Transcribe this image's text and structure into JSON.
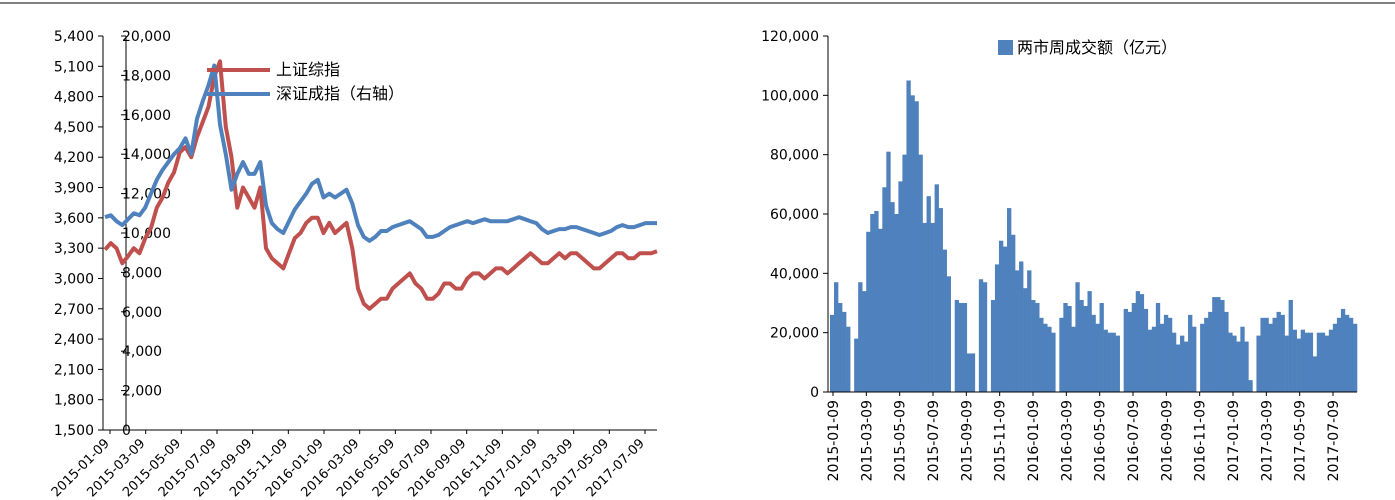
{
  "chart_data": [
    {
      "type": "line",
      "left_axis": {
        "min": 1500,
        "max": 5400,
        "step": 300,
        "ticks": [
          "1,500",
          "1,800",
          "2,100",
          "2,400",
          "2,700",
          "3,000",
          "3,300",
          "3,600",
          "3,900",
          "4,200",
          "4,500",
          "4,800",
          "5,100",
          "5,400"
        ]
      },
      "right_axis": {
        "min": 0,
        "max": 20000,
        "step": 2000,
        "ticks": [
          "0",
          "2,000",
          "4,000",
          "6,000",
          "8,000",
          "10,000",
          "12,000",
          "14,000",
          "16,000",
          "18,000",
          "20,000"
        ]
      },
      "x_labels": [
        "2015-01-09",
        "2015-03-09",
        "2015-05-09",
        "2015-07-09",
        "2015-09-09",
        "2015-11-09",
        "2016-01-09",
        "2016-03-09",
        "2016-05-09",
        "2016-07-09",
        "2016-09-09",
        "2016-11-09",
        "2017-01-09",
        "2017-03-09",
        "2017-05-09",
        "2017-07-09"
      ],
      "legend_position": "top-center",
      "series": [
        {
          "name": "上证综指",
          "axis": "left",
          "color": "#c0504d",
          "values": [
            3285,
            3350,
            3300,
            3150,
            3220,
            3300,
            3250,
            3400,
            3500,
            3700,
            3800,
            3950,
            4050,
            4250,
            4300,
            4200,
            4400,
            4550,
            4700,
            5000,
            5150,
            4500,
            4200,
            3700,
            3900,
            3800,
            3700,
            3900,
            3300,
            3200,
            3150,
            3100,
            3250,
            3400,
            3450,
            3550,
            3600,
            3600,
            3450,
            3550,
            3450,
            3500,
            3550,
            3300,
            2900,
            2750,
            2700,
            2750,
            2800,
            2800,
            2900,
            2950,
            3000,
            3050,
            2950,
            2900,
            2800,
            2800,
            2850,
            2950,
            2950,
            2900,
            2900,
            3000,
            3050,
            3050,
            3000,
            3050,
            3100,
            3100,
            3050,
            3100,
            3150,
            3200,
            3250,
            3200,
            3150,
            3150,
            3200,
            3250,
            3200,
            3250,
            3250,
            3200,
            3150,
            3100,
            3100,
            3150,
            3200,
            3250,
            3250,
            3200,
            3200,
            3250,
            3250,
            3250,
            3270
          ]
        },
        {
          "name": "深证成指（右轴）",
          "axis": "right",
          "color": "#4f81bd",
          "values": [
            10800,
            10900,
            10600,
            10400,
            10700,
            11000,
            10900,
            11300,
            12000,
            12700,
            13200,
            13600,
            14000,
            14300,
            14800,
            14000,
            15800,
            16700,
            17500,
            18500,
            15500,
            14000,
            12200,
            13000,
            13600,
            13000,
            13000,
            13600,
            11400,
            10500,
            10200,
            10000,
            10600,
            11200,
            11600,
            12000,
            12500,
            12700,
            11800,
            12000,
            11800,
            12000,
            12200,
            11500,
            10400,
            9800,
            9600,
            9800,
            10100,
            10100,
            10300,
            10400,
            10500,
            10600,
            10400,
            10200,
            9800,
            9800,
            9900,
            10100,
            10300,
            10400,
            10500,
            10600,
            10500,
            10600,
            10700,
            10600,
            10600,
            10600,
            10600,
            10700,
            10800,
            10700,
            10600,
            10500,
            10200,
            10000,
            10100,
            10200,
            10200,
            10300,
            10300,
            10200,
            10100,
            10000,
            9900,
            10000,
            10100,
            10300,
            10400,
            10300,
            10300,
            10400,
            10500,
            10500,
            10500
          ]
        }
      ]
    },
    {
      "type": "bar",
      "y_axis": {
        "min": 0,
        "max": 120000,
        "step": 20000,
        "ticks": [
          "0",
          "20,000",
          "40,000",
          "60,000",
          "80,000",
          "100,000",
          "120,000"
        ]
      },
      "x_labels": [
        "2015-01-09",
        "2015-03-09",
        "2015-05-09",
        "2015-07-09",
        "2015-09-09",
        "2015-11-09",
        "2016-01-09",
        "2016-03-09",
        "2016-05-09",
        "2016-07-09",
        "2016-09-09",
        "2016-11-09",
        "2017-01-09",
        "2017-03-09",
        "2017-05-09",
        "2017-07-09"
      ],
      "legend_position": "top-center",
      "series": [
        {
          "name": "两市周成交额（亿元）",
          "color": "#4f81bd",
          "values": [
            26000,
            37000,
            30000,
            27000,
            22000,
            0,
            18000,
            37000,
            34000,
            54000,
            60000,
            61000,
            55000,
            69000,
            81000,
            64000,
            60000,
            71000,
            80000,
            105000,
            100000,
            98000,
            80000,
            57000,
            66000,
            57000,
            70000,
            62000,
            48000,
            39000,
            0,
            31000,
            30000,
            30000,
            13000,
            13000,
            0,
            38000,
            37000,
            0,
            31000,
            43000,
            51000,
            49000,
            62000,
            53000,
            41000,
            44000,
            35000,
            41000,
            31000,
            30000,
            25000,
            23000,
            22000,
            20000,
            0,
            25000,
            30000,
            29000,
            22000,
            37000,
            31000,
            29000,
            34000,
            26000,
            23000,
            30000,
            21000,
            20000,
            20000,
            19000,
            0,
            28000,
            27000,
            30000,
            34000,
            33000,
            28000,
            21000,
            22000,
            30000,
            23000,
            26000,
            25000,
            20000,
            16000,
            19000,
            17000,
            26000,
            22000,
            0,
            23000,
            25000,
            27000,
            32000,
            32000,
            31000,
            27000,
            20000,
            19000,
            17000,
            22000,
            17000,
            4000,
            0,
            19000,
            25000,
            25000,
            23000,
            25000,
            27000,
            26000,
            19000,
            31000,
            21000,
            18000,
            21000,
            20000,
            20000,
            12000,
            20000,
            20000,
            19000,
            21000,
            23000,
            25000,
            28000,
            26000,
            25000,
            23000
          ]
        }
      ]
    }
  ]
}
